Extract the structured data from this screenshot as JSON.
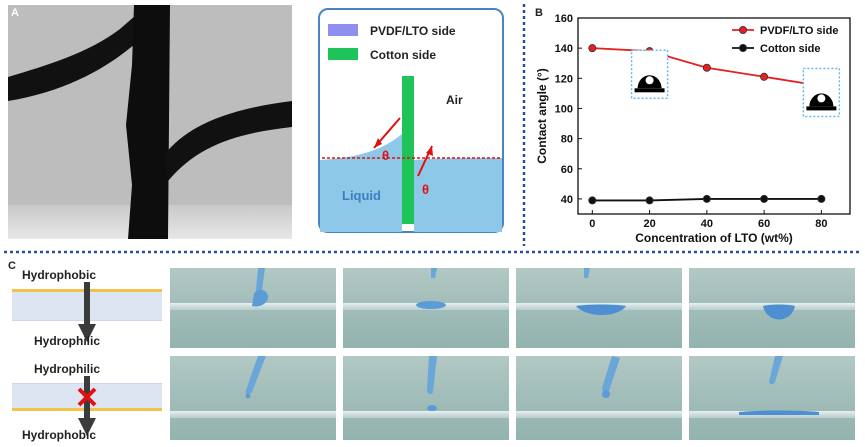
{
  "panels": {
    "a": {
      "letter": "A"
    },
    "schematic": {
      "legend": [
        {
          "label": "PVDF/LTO side",
          "color": "#8f8ff0"
        },
        {
          "label": "Cotton side",
          "color": "#1ec45a"
        }
      ],
      "air_label": "Air",
      "liquid_label": "Liquid",
      "theta_symbol": "θ",
      "colors": {
        "liquid": "#8ec8e8",
        "membrane": "#1ec45a",
        "angle": "#e01010",
        "outline": "#3a7fc0"
      }
    },
    "b": {
      "letter": "B"
    },
    "c": {
      "letter": "C",
      "row1": {
        "top": "Hydrophobic",
        "bottom": "Hydrophilic"
      },
      "row2": {
        "top": "Hydrophilic",
        "bottom": "Hydrophobic",
        "blocked_icon": "red-x-icon"
      }
    }
  },
  "chart_data": {
    "type": "line",
    "xlabel": "Concentration of LTO (wt%)",
    "ylabel": "Contact angle (°)",
    "x": [
      0,
      20,
      40,
      60,
      80
    ],
    "xlim": [
      -5,
      90
    ],
    "ylim": [
      30,
      160
    ],
    "yticks": [
      40,
      60,
      80,
      100,
      120,
      140,
      160
    ],
    "xticks": [
      0,
      20,
      40,
      60,
      80
    ],
    "legend_position": "top-right",
    "series": [
      {
        "name": "PVDF/LTO side",
        "color": "#e62020",
        "marker_fill": "#e62020",
        "values": [
          140,
          138,
          127,
          121,
          115
        ]
      },
      {
        "name": "Cotton side",
        "color": "#111111",
        "marker_fill": "#111111",
        "values": [
          39,
          39,
          40,
          40,
          40
        ]
      }
    ],
    "insets": [
      {
        "x": 20,
        "icon": "droplet-high-angle-icon"
      },
      {
        "x": 80,
        "icon": "droplet-high-angle-icon"
      }
    ]
  }
}
